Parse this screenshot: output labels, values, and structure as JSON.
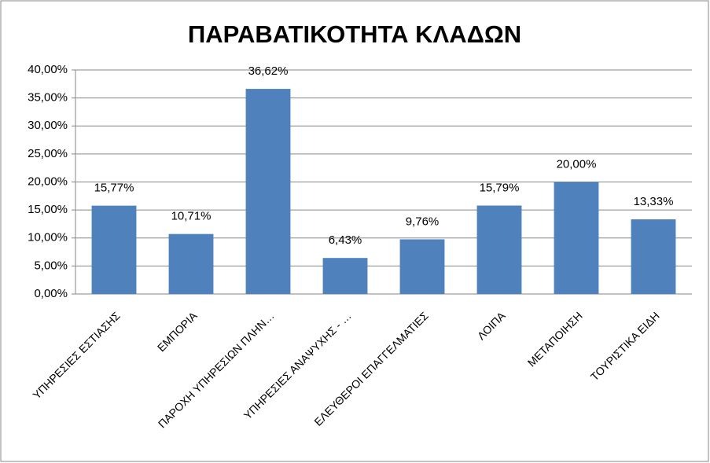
{
  "chart_data": {
    "type": "bar",
    "title": "ΠΑΡΑΒΑΤΙΚΟΤΗΤΑ ΚΛΑΔΩΝ",
    "categories": [
      "ΥΠΗΡΕΣΙΕΣ ΕΣΤΙΑΣΗΣ",
      "ΕΜΠΟΡΙΑ",
      "ΠΑΡΟΧΗ ΥΠΗΡΕΣΙΩΝ ΠΛΗΝ…",
      "ΥΠΗΡΕΣΙΕΣ ΑΝΑΨΥΧΗΣ - …",
      "ΕΛΕΥΘΕΡΟΙ ΕΠΑΓΓΕΛΜΑΤΙΕΣ",
      "ΛΟΙΠΑ",
      "ΜΕΤΑΠΟΙΗΣΗ",
      "ΤΟΥΡΙΣΤΙΚΑ ΕΙΔΗ"
    ],
    "values": [
      15.77,
      10.71,
      36.62,
      6.43,
      9.76,
      15.79,
      20.0,
      13.33
    ],
    "value_labels": [
      "15,77%",
      "10,71%",
      "36,62%",
      "6,43%",
      "9,76%",
      "15,79%",
      "20,00%",
      "13,33%"
    ],
    "color": "#4f81bd",
    "ylim": [
      0,
      40
    ],
    "yticks": [
      {
        "value": 0,
        "label": "0,00%"
      },
      {
        "value": 5,
        "label": "5,00%"
      },
      {
        "value": 10,
        "label": "10,00%"
      },
      {
        "value": 15,
        "label": "15,00%"
      },
      {
        "value": 20,
        "label": "20,00%"
      },
      {
        "value": 25,
        "label": "25,00%"
      },
      {
        "value": 30,
        "label": "30,00%"
      },
      {
        "value": 35,
        "label": "35,00%"
      },
      {
        "value": 40,
        "label": "40,00%"
      }
    ],
    "grid": true
  }
}
